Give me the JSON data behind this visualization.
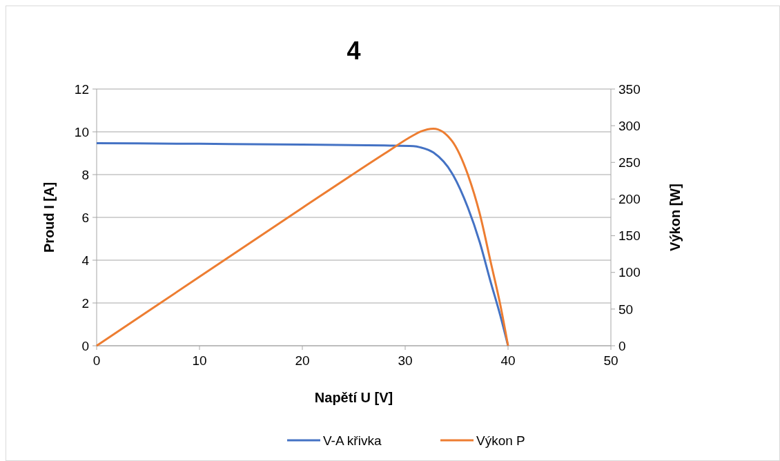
{
  "chart_data": {
    "type": "line",
    "title": "4",
    "xlabel": "Napětí U [V]",
    "ylabel": "Proud I [A]",
    "y2label": "Výkon [W]",
    "xlim": [
      0,
      50
    ],
    "xticks": [
      0,
      10,
      20,
      30,
      40,
      50
    ],
    "ylim": [
      0,
      12
    ],
    "yticks": [
      0,
      2,
      4,
      6,
      8,
      10,
      12
    ],
    "y2lim": [
      0,
      350
    ],
    "y2ticks": [
      0,
      50,
      100,
      150,
      200,
      250,
      300,
      350
    ],
    "grid": "y",
    "legend": "bottom",
    "marker": "none",
    "line_style": "solid",
    "series": [
      {
        "name": "V-A křivka",
        "color": "#4472c4",
        "x": [
          0,
          10,
          20,
          28,
          30.8,
          31.5,
          32.75,
          34.56,
          36.1,
          37.25,
          38.3,
          39.26,
          40
        ],
        "values": [
          9.47,
          9.44,
          9.4,
          9.36,
          9.33,
          9.27,
          9.03,
          8.06,
          6.45,
          4.84,
          3.0,
          1.39,
          0
        ]
      },
      {
        "name": "Výkon P",
        "color": "#ed7d31",
        "axis": "y2",
        "x": [
          0,
          10,
          20,
          28,
          30.8,
          31.5,
          32.75,
          34.56,
          36.1,
          37.25,
          38.3,
          39.26,
          40
        ],
        "values": [
          0,
          94,
          188,
          262,
          287,
          292,
          296,
          279,
          233,
          180,
          115,
          55,
          0
        ]
      }
    ]
  }
}
